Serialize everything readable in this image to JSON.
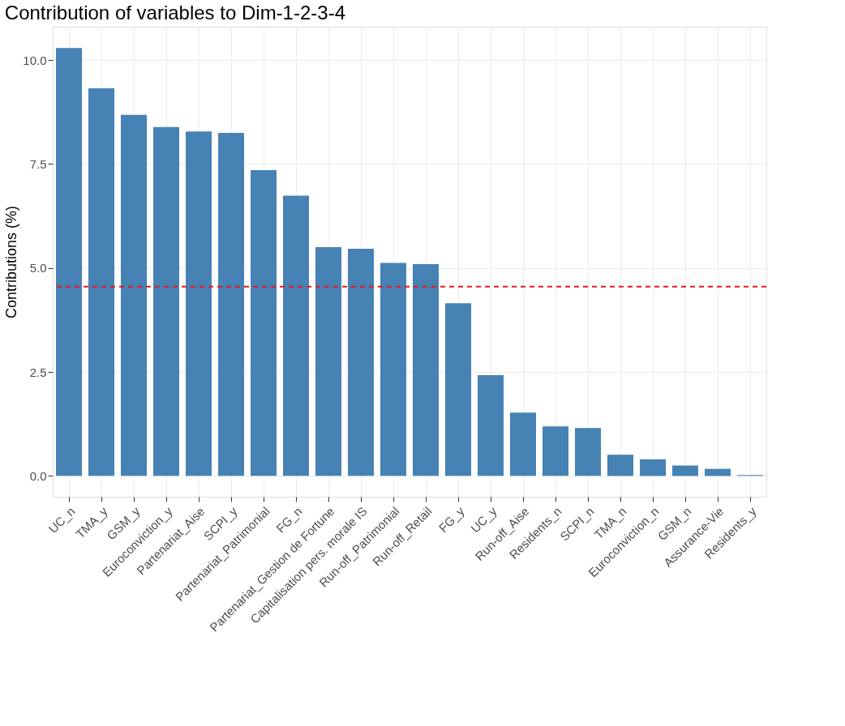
{
  "chart_data": {
    "type": "bar",
    "title": "Contribution of variables to Dim-1-2-3-4",
    "ylabel": "Contributions (%)",
    "categories": [
      "UC_n",
      "TMA_y",
      "GSM_y",
      "Euroconviction_y",
      "Partenariat_Aise",
      "SCPI_y",
      "Partenariat_Patrimonial",
      "FG_n",
      "Partenariat_Gestion de Fortune",
      "Capitalisation pers. morale IS",
      "Run-off_Patrimonial",
      "Run-off_Retail",
      "FG_y",
      "UC_y",
      "Run-off_Aise",
      "Residents_n",
      "SCPI_n",
      "TMA_n",
      "Euroconviction_n",
      "GSM_n",
      "Assurance-Vie",
      "Residents_y"
    ],
    "values": [
      10.29,
      9.32,
      8.68,
      8.39,
      8.28,
      8.25,
      7.35,
      6.74,
      5.5,
      5.46,
      5.12,
      5.09,
      4.15,
      2.42,
      1.52,
      1.19,
      1.15,
      0.51,
      0.4,
      0.25,
      0.17,
      0.02
    ],
    "color": "#4682b4",
    "ylim": [
      -0.5,
      10.8
    ],
    "yticks": [
      {
        "value": 0,
        "label": "0.0"
      },
      {
        "value": 2.5,
        "label": "2.5"
      },
      {
        "value": 5,
        "label": "5.0"
      },
      {
        "value": 7.5,
        "label": "7.5"
      },
      {
        "value": 10,
        "label": "10.0"
      }
    ],
    "grid": true,
    "ref_lines": [
      {
        "axis": "y",
        "value": 4.55,
        "label": null,
        "color": "#e41a1c",
        "line_style": "dashed"
      }
    ]
  }
}
